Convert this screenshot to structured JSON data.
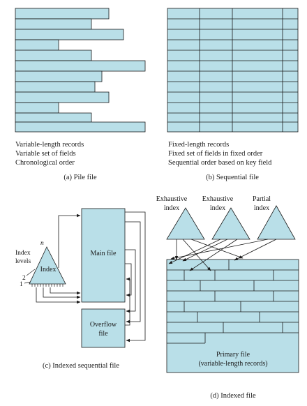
{
  "colors": {
    "fill": "#b9dfe8",
    "stroke": "#1a1a1a",
    "background": "#ffffff"
  },
  "pile": {
    "desc": [
      "Variable-length records",
      "Variable set of fields",
      "Chronological order"
    ],
    "caption": "(a) Pile file"
  },
  "sequential": {
    "desc": [
      "Fixed-length records",
      "Fixed set of fields in fixed order",
      "Sequential order based on key field"
    ],
    "caption": "(b) Sequential file"
  },
  "indexed_sequential": {
    "level_n": "n",
    "levels_label": [
      "Index",
      "levels"
    ],
    "level_2": "2",
    "level_1": "1",
    "index_label": "Index",
    "main_file": "Main file",
    "overflow_file": [
      "Overflow",
      "file"
    ],
    "caption": "(c) Indexed sequential file"
  },
  "indexed": {
    "index_labels": [
      [
        "Exhaustive",
        "index"
      ],
      [
        "Exhaustive",
        "index"
      ],
      [
        "Partial",
        "index"
      ]
    ],
    "primary_file": [
      "Primary file",
      "(variable-length records)"
    ],
    "caption": "(d) Indexed file"
  }
}
